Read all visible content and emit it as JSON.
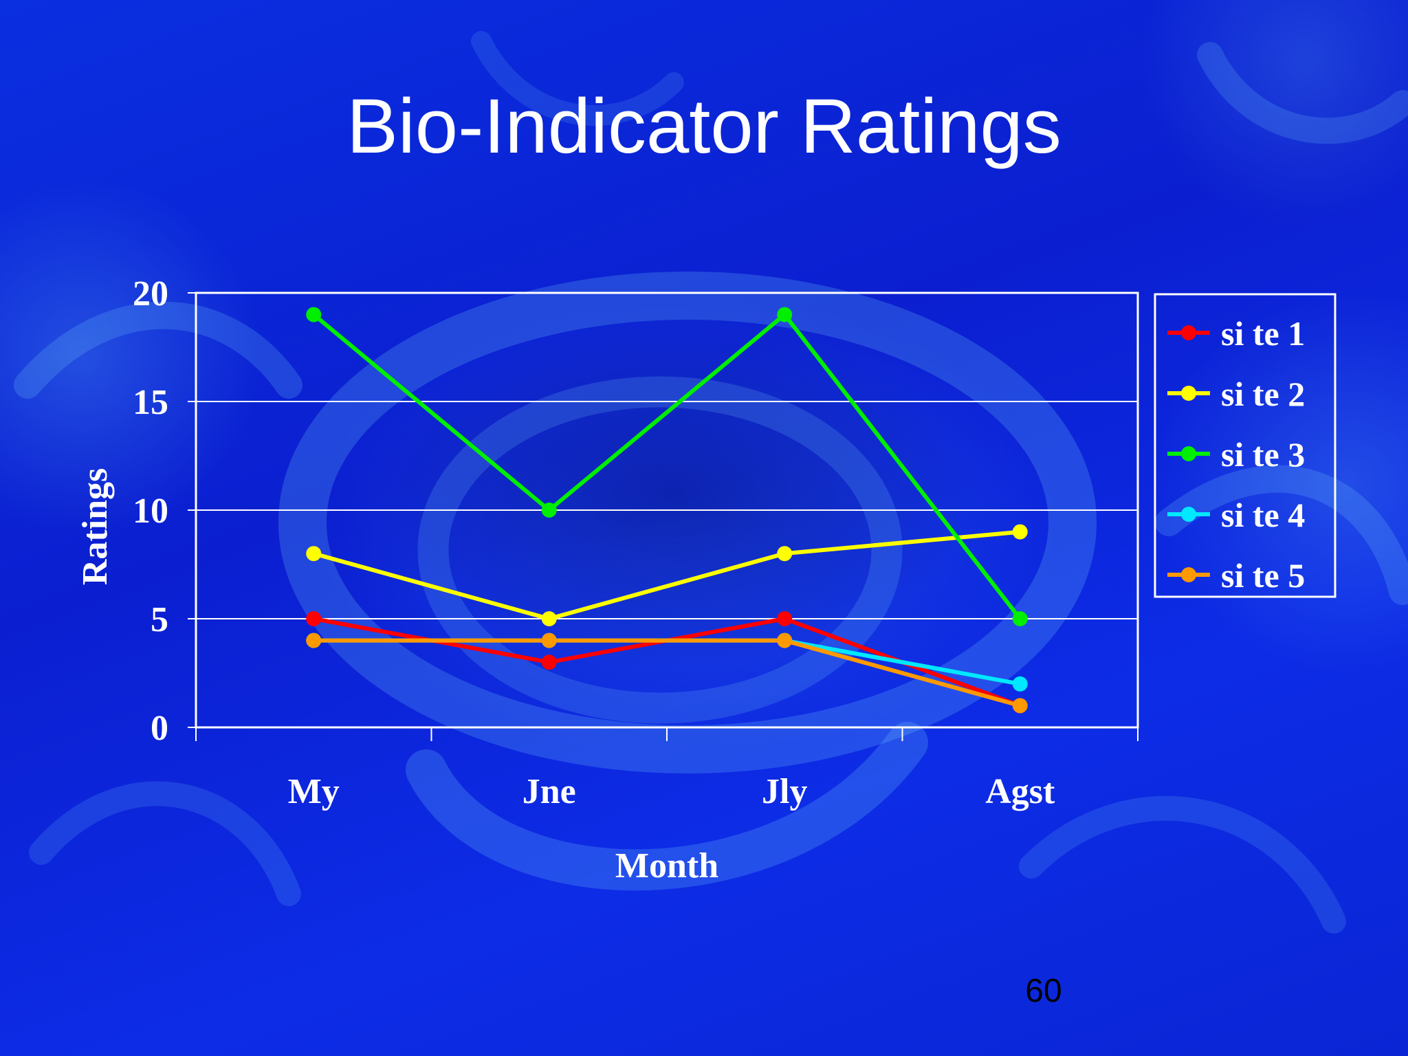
{
  "slide": {
    "title": "Bio-Indicator Ratings",
    "page_number": "60"
  },
  "colors": {
    "background": "#0b25d8",
    "text": "#ffffff",
    "gridline": "#ffffff"
  },
  "chart_data": {
    "type": "line",
    "title": "",
    "xlabel": "Month",
    "ylabel": "Ratings",
    "categories": [
      "May",
      "June",
      "July",
      "August"
    ],
    "category_labels": [
      "My",
      "Jne",
      "Jly",
      "Agst"
    ],
    "ylim": [
      0,
      20
    ],
    "yticks": [
      0,
      5,
      10,
      15,
      20
    ],
    "grid": true,
    "legend_position": "right",
    "series": [
      {
        "name": "si te 1",
        "color": "#ff0000",
        "values": [
          5,
          3,
          5,
          1
        ]
      },
      {
        "name": "si te 2",
        "color": "#ffff00",
        "values": [
          8,
          5,
          8,
          9
        ]
      },
      {
        "name": "si te 3",
        "color": "#00ee00",
        "values": [
          19,
          10,
          19,
          5
        ]
      },
      {
        "name": "si te 4",
        "color": "#00e8ff",
        "values": [
          4,
          4,
          4,
          2
        ]
      },
      {
        "name": "si te 5",
        "color": "#ff9900",
        "values": [
          4,
          4,
          4,
          1
        ]
      }
    ]
  }
}
